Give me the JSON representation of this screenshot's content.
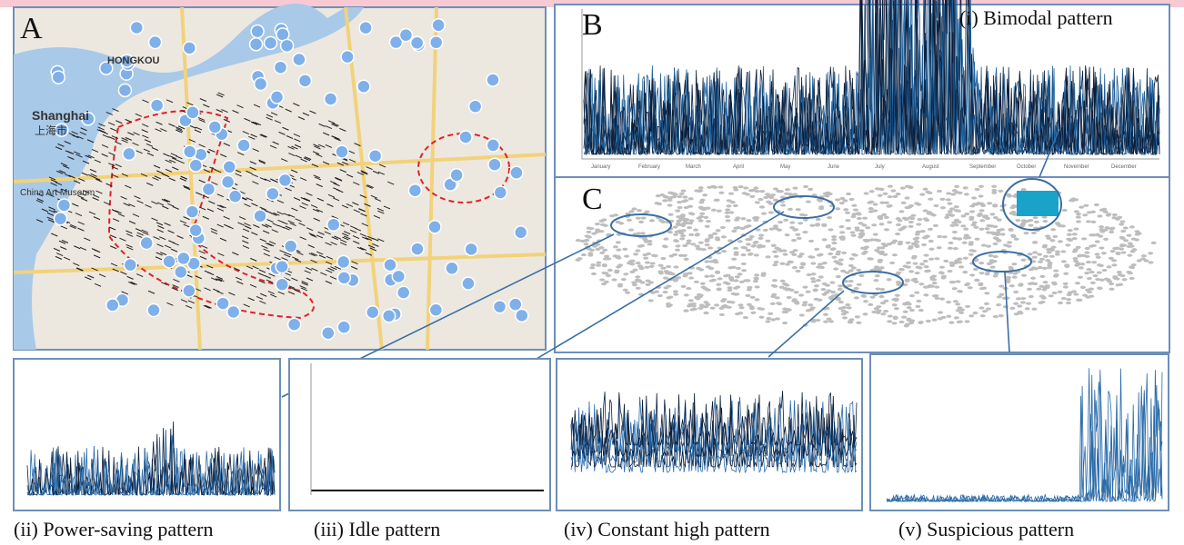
{
  "figure": {
    "panel_labels": {
      "a": "A",
      "b": "B",
      "c": "C"
    },
    "map_labels": {
      "city": "Shanghai",
      "city_cn": "上海市",
      "district": "HONGKOU",
      "museum": "China Art Museum"
    },
    "months": [
      "January",
      "February",
      "March",
      "April",
      "May",
      "June",
      "July",
      "August",
      "September",
      "October",
      "November",
      "December"
    ],
    "captions": {
      "i": "(i) Bimodal pattern",
      "ii": "(ii) Power-saving pattern",
      "iii": "(iii) Idle pattern",
      "iv": "(iv) Constant high pattern",
      "v": "(v) Suspicious pattern"
    }
  }
}
